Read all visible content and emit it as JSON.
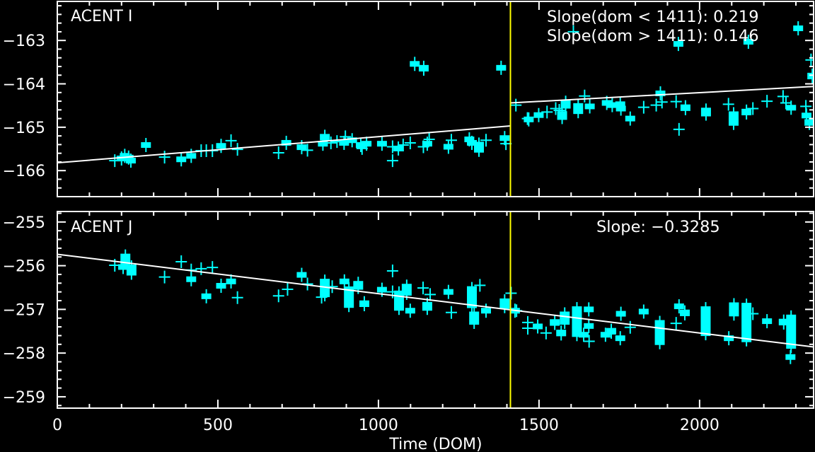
{
  "figure": {
    "background": "#000000",
    "axis_color": "#FFFFFF",
    "shared_xlabel": "Time (DOM)"
  },
  "chart_data": [
    {
      "type": "scatter",
      "title": "ACENT I",
      "xlabel": "",
      "ylabel": "",
      "xlim": [
        0,
        2355
      ],
      "ylim": [
        -166.6,
        -162.1
      ],
      "grid": false,
      "xticks": {
        "values": [
          0,
          500,
          1000,
          1500,
          2000
        ],
        "labels": [],
        "minor_step": 100
      },
      "yticks": {
        "values": [
          -163,
          -164,
          -165,
          -166
        ],
        "labels": [
          "−163",
          "−164",
          "−165",
          "−166"
        ],
        "minor_step": 0.2
      },
      "annotations": [
        "Slope(dom < 1411): 0.219",
        "Slope(dom > 1411): 0.146"
      ],
      "breakpoint_dom": 1411,
      "fit": [
        {
          "segment": "dom < 1411",
          "slope": 0.219,
          "x": [
            0,
            1411
          ],
          "y": [
            -165.82,
            -164.97
          ]
        },
        {
          "segment": "dom > 1411",
          "slope": 0.146,
          "x": [
            1411,
            2355
          ],
          "y": [
            -164.44,
            -164.06
          ]
        }
      ],
      "colors": {
        "points": "#00FFFF",
        "fit": "#FFFFFF",
        "breakpoint": "#FFFF00"
      },
      "point_fields": [
        "dom",
        "value",
        "marker",
        "range"
      ],
      "points": [
        [
          179,
          -165.77,
          "cross",
          0
        ],
        [
          200,
          -165.72,
          "box",
          0
        ],
        [
          210,
          -165.66,
          "box",
          0.1
        ],
        [
          222,
          -165.7,
          "box",
          0.1
        ],
        [
          229,
          -165.77,
          "box",
          0
        ],
        [
          276,
          -165.41,
          "box",
          0
        ],
        [
          334,
          -165.69,
          "cross",
          0
        ],
        [
          386,
          -165.74,
          "box",
          0
        ],
        [
          417,
          -165.66,
          "box",
          0
        ],
        [
          448,
          -165.54,
          "cross",
          0
        ],
        [
          464,
          -165.54,
          "cross",
          0
        ],
        [
          483,
          -165.54,
          "cross",
          0
        ],
        [
          510,
          -165.43,
          "box",
          0
        ],
        [
          541,
          -165.31,
          "cross",
          0
        ],
        [
          561,
          -165.51,
          "cross",
          0
        ],
        [
          689,
          -165.59,
          "cross",
          0
        ],
        [
          713,
          -165.36,
          "box",
          0
        ],
        [
          761,
          -165.46,
          "box",
          0
        ],
        [
          779,
          -165.53,
          "cross",
          0
        ],
        [
          827,
          -165.38,
          "box",
          0
        ],
        [
          833,
          -165.23,
          "box",
          0.15
        ],
        [
          852,
          -165.36,
          "cross",
          0
        ],
        [
          871,
          -165.33,
          "cross",
          0
        ],
        [
          893,
          -165.36,
          "box",
          0
        ],
        [
          897,
          -165.22,
          "cross",
          0
        ],
        [
          918,
          -165.3,
          "box",
          0
        ],
        [
          945,
          -165.41,
          "box",
          0
        ],
        [
          949,
          -165.49,
          "cross",
          0
        ],
        [
          963,
          -165.38,
          "box",
          0
        ],
        [
          1011,
          -165.38,
          "box",
          0.1
        ],
        [
          1044,
          -165.45,
          "cross",
          0
        ],
        [
          1044,
          -165.77,
          "cross",
          0
        ],
        [
          1062,
          -165.49,
          "box",
          0
        ],
        [
          1077,
          -165.41,
          "cross",
          0
        ],
        [
          1099,
          -165.36,
          "cross",
          0
        ],
        [
          1113,
          -163.54,
          "box",
          0
        ],
        [
          1141,
          -163.64,
          "box",
          0.15
        ],
        [
          1140,
          -165.45,
          "cross",
          0
        ],
        [
          1152,
          -165.38,
          "box",
          0
        ],
        [
          1158,
          -165.28,
          "cross",
          0
        ],
        [
          1218,
          -165.45,
          "box",
          0
        ],
        [
          1227,
          -165.3,
          "cross",
          0
        ],
        [
          1283,
          -165.28,
          "box",
          0
        ],
        [
          1291,
          -165.36,
          "box",
          0
        ],
        [
          1313,
          -165.46,
          "box",
          0.25
        ],
        [
          1335,
          -165.3,
          "cross",
          0
        ],
        [
          1382,
          -163.63,
          "box",
          0
        ],
        [
          1393,
          -165.25,
          "box",
          0
        ],
        [
          1397,
          -165.38,
          "cross",
          0
        ],
        [
          1428,
          -164.49,
          "cross",
          0
        ],
        [
          1464,
          -164.8,
          "cross",
          0
        ],
        [
          1468,
          -164.82,
          "box",
          0
        ],
        [
          1499,
          -164.72,
          "box",
          0
        ],
        [
          1525,
          -164.65,
          "cross",
          0
        ],
        [
          1552,
          -164.57,
          "cross",
          0
        ],
        [
          1563,
          -164.61,
          "cross",
          0
        ],
        [
          1572,
          -164.73,
          "box",
          0.2
        ],
        [
          1583,
          -164.47,
          "box",
          0.2
        ],
        [
          1607,
          -162.8,
          "cross",
          0
        ],
        [
          1622,
          -164.57,
          "box",
          0.25
        ],
        [
          1642,
          -164.28,
          "cross",
          0
        ],
        [
          1658,
          -164.52,
          "box",
          0.1
        ],
        [
          1711,
          -164.44,
          "box",
          0
        ],
        [
          1728,
          -164.49,
          "box",
          0.1
        ],
        [
          1753,
          -164.47,
          "box",
          0
        ],
        [
          1755,
          -164.57,
          "box",
          0
        ],
        [
          1784,
          -164.8,
          "box",
          0
        ],
        [
          1826,
          -164.54,
          "cross",
          0
        ],
        [
          1865,
          -164.49,
          "cross",
          0
        ],
        [
          1878,
          -164.22,
          "box",
          0
        ],
        [
          1883,
          -164.42,
          "cross",
          0
        ],
        [
          1927,
          -164.41,
          "cross",
          0
        ],
        [
          1934,
          -163.08,
          "box",
          0
        ],
        [
          1936,
          -165.05,
          "cross",
          0
        ],
        [
          1956,
          -164.55,
          "box",
          0.15
        ],
        [
          2020,
          -164.65,
          "box",
          0.2
        ],
        [
          2090,
          -164.47,
          "cross",
          0
        ],
        [
          2106,
          -164.8,
          "box",
          0.33
        ],
        [
          2146,
          -164.65,
          "box",
          0.15
        ],
        [
          2152,
          -163.03,
          "box",
          0
        ],
        [
          2166,
          -164.57,
          "cross",
          0
        ],
        [
          2210,
          -164.4,
          "cross",
          0
        ],
        [
          2260,
          -164.29,
          "cross",
          0
        ],
        [
          2269,
          -164.44,
          "cross",
          0
        ],
        [
          2285,
          -164.55,
          "box",
          0.1
        ],
        [
          2307,
          -162.72,
          "box",
          0.1
        ],
        [
          2331,
          -164.52,
          "cross",
          0
        ],
        [
          2333,
          -164.73,
          "box",
          0
        ],
        [
          2342,
          -164.89,
          "box",
          0.15
        ],
        [
          2347,
          -163.45,
          "cross",
          0
        ],
        [
          2351,
          -163.82,
          "box",
          0.15
        ]
      ]
    },
    {
      "type": "scatter",
      "title": "ACENT J",
      "xlabel": "Time (DOM)",
      "ylabel": "",
      "xlim": [
        0,
        2355
      ],
      "ylim": [
        -259.26,
        -254.76
      ],
      "grid": false,
      "xticks": {
        "values": [
          0,
          500,
          1000,
          1500,
          2000
        ],
        "labels": [
          "0",
          "500",
          "1000",
          "1500",
          "2000"
        ],
        "minor_step": 100
      },
      "yticks": {
        "values": [
          -255,
          -256,
          -257,
          -258,
          -259
        ],
        "labels": [
          "−255",
          "−256",
          "−257",
          "−258",
          "−259"
        ],
        "minor_step": 0.2
      },
      "annotations": [
        "Slope: −0.3285"
      ],
      "breakpoint_dom": 1411,
      "fit": [
        {
          "segment": "all",
          "slope": -0.3285,
          "x": [
            0,
            2355
          ],
          "y": [
            -255.74,
            -257.86
          ]
        }
      ],
      "colors": {
        "points": "#00FFFF",
        "fit": "#FFFFFF",
        "breakpoint": "#FFFF00"
      },
      "point_fields": [
        "dom",
        "value",
        "marker",
        "range"
      ],
      "points": [
        [
          179,
          -255.99,
          "cross",
          0
        ],
        [
          205,
          -256.03,
          "box",
          0
        ],
        [
          212,
          -255.85,
          "box",
          0.25
        ],
        [
          231,
          -256.1,
          "box",
          0.25
        ],
        [
          334,
          -256.26,
          "cross",
          0
        ],
        [
          386,
          -255.91,
          "cross",
          0
        ],
        [
          417,
          -256.1,
          "cross",
          0
        ],
        [
          417,
          -256.31,
          "box",
          0
        ],
        [
          448,
          -256.07,
          "cross",
          0
        ],
        [
          464,
          -256.7,
          "box",
          0.1
        ],
        [
          483,
          -256.04,
          "cross",
          0
        ],
        [
          510,
          -256.46,
          "box",
          0
        ],
        [
          541,
          -256.36,
          "box",
          0
        ],
        [
          561,
          -256.73,
          "cross",
          0
        ],
        [
          689,
          -256.69,
          "cross",
          0
        ],
        [
          717,
          -256.54,
          "cross",
          0
        ],
        [
          761,
          -256.21,
          "box",
          0
        ],
        [
          779,
          -256.42,
          "cross",
          0
        ],
        [
          823,
          -256.72,
          "cross",
          0
        ],
        [
          833,
          -256.51,
          "box",
          0.42
        ],
        [
          856,
          -256.48,
          "cross",
          0
        ],
        [
          894,
          -256.36,
          "box",
          0
        ],
        [
          908,
          -256.72,
          "box",
          0.49
        ],
        [
          937,
          -256.45,
          "box",
          0.2
        ],
        [
          956,
          -256.87,
          "box",
          0.15
        ],
        [
          1011,
          -256.55,
          "box",
          0
        ],
        [
          1044,
          -256.12,
          "cross",
          0
        ],
        [
          1044,
          -256.6,
          "cross",
          0
        ],
        [
          1064,
          -256.8,
          "box",
          0.46
        ],
        [
          1088,
          -256.55,
          "box",
          0.27
        ],
        [
          1099,
          -257.03,
          "box",
          0
        ],
        [
          1139,
          -256.51,
          "cross",
          0
        ],
        [
          1152,
          -256.93,
          "box",
          0.2
        ],
        [
          1161,
          -256.66,
          "cross",
          0
        ],
        [
          1218,
          -256.6,
          "box",
          0
        ],
        [
          1227,
          -257.07,
          "cross",
          0
        ],
        [
          1291,
          -256.72,
          "box",
          0.5
        ],
        [
          1298,
          -257.2,
          "box",
          0.3
        ],
        [
          1316,
          -256.45,
          "cross",
          0
        ],
        [
          1335,
          -257.03,
          "box",
          0
        ],
        [
          1393,
          -256.87,
          "box",
          0.24
        ],
        [
          1413,
          -256.63,
          "cross",
          0
        ],
        [
          1425,
          -257.03,
          "box",
          0
        ],
        [
          1430,
          -257.03,
          "cross",
          0
        ],
        [
          1465,
          -257.3,
          "cross",
          0
        ],
        [
          1465,
          -257.43,
          "cross",
          0
        ],
        [
          1496,
          -257.39,
          "box",
          0
        ],
        [
          1522,
          -257.54,
          "cross",
          0
        ],
        [
          1549,
          -257.3,
          "box",
          0.15
        ],
        [
          1569,
          -257.54,
          "box",
          0.15
        ],
        [
          1580,
          -257.2,
          "box",
          0.3
        ],
        [
          1618,
          -257.28,
          "box",
          0.7
        ],
        [
          1639,
          -257.58,
          "box",
          0
        ],
        [
          1655,
          -257.0,
          "box",
          0
        ],
        [
          1655,
          -257.38,
          "box",
          0
        ],
        [
          1656,
          -257.73,
          "cross",
          0
        ],
        [
          1707,
          -257.58,
          "box",
          0
        ],
        [
          1725,
          -257.5,
          "box",
          0.15
        ],
        [
          1753,
          -257.66,
          "box",
          0
        ],
        [
          1755,
          -257.1,
          "box",
          0
        ],
        [
          1784,
          -257.41,
          "cross",
          0
        ],
        [
          1826,
          -257.05,
          "box",
          0
        ],
        [
          1876,
          -257.53,
          "box",
          0.57
        ],
        [
          1927,
          -257.32,
          "cross",
          0
        ],
        [
          1936,
          -256.93,
          "box",
          0
        ],
        [
          1954,
          -257.08,
          "box",
          0.15
        ],
        [
          2019,
          -257.27,
          "box",
          0.68
        ],
        [
          2091,
          -257.66,
          "box",
          0
        ],
        [
          2107,
          -257.0,
          "box",
          0.32
        ],
        [
          2146,
          -257.3,
          "box",
          0.9
        ],
        [
          2166,
          -257.1,
          "cross",
          0
        ],
        [
          2210,
          -257.27,
          "box",
          0
        ],
        [
          2262,
          -257.29,
          "box",
          0.15
        ],
        [
          2285,
          -257.51,
          "box",
          0.78
        ],
        [
          2283,
          -258.09,
          "box",
          0
        ]
      ]
    }
  ]
}
